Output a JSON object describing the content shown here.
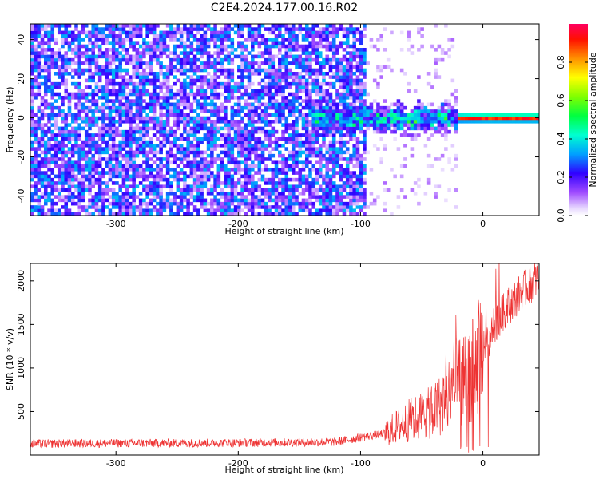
{
  "figure": {
    "title": "C2E4.2024.177.00.16.R02"
  },
  "chart_data": [
    {
      "type": "heatmap",
      "title": "C2E4.2024.177.00.16.R02",
      "xlabel": "Height of straight line (km)",
      "ylabel": "Frequency (Hz)",
      "xlim": [
        -370,
        46
      ],
      "ylim": [
        -50,
        48
      ],
      "x_ticks": [
        -300,
        -200,
        -100,
        0
      ],
      "y_ticks": [
        -40,
        -20,
        0,
        20,
        40
      ],
      "colorbar": {
        "label": "Normalized spectral amplitude",
        "range": [
          0,
          1
        ],
        "ticks": [
          0.0,
          0.2,
          0.4,
          0.6,
          0.8
        ],
        "colormap": [
          "#ffffff",
          "#d6b8ff",
          "#9b3cff",
          "#5a00e0",
          "#0000ff",
          "#00c8ff",
          "#00ff9c",
          "#00ff00",
          "#c8ff00",
          "#ffff00",
          "#ff8000",
          "#ff0000",
          "#ff0066"
        ]
      },
      "features": {
        "noise_region_x": [
          -370,
          -95
        ],
        "noise_amplitude_range": [
          0.05,
          0.35
        ],
        "sparse_region_x": [
          -95,
          -20
        ],
        "signal_center_hz": 0,
        "signal_start_x": -140,
        "signal_peak_amplitude": 1.0
      }
    },
    {
      "type": "line",
      "xlabel": "Height of straight line (km)",
      "ylabel": "SNR (10 * v/v)",
      "xlim": [
        -370,
        46
      ],
      "ylim": [
        0,
        2200
      ],
      "x_ticks": [
        -300,
        -200,
        -100,
        0
      ],
      "y_ticks": [
        500,
        1000,
        1500,
        2000
      ],
      "line_color": "#ee3333",
      "profile": [
        {
          "x": -370,
          "y": 130
        },
        {
          "x": -300,
          "y": 135
        },
        {
          "x": -200,
          "y": 140
        },
        {
          "x": -120,
          "y": 150
        },
        {
          "x": -80,
          "y": 250
        },
        {
          "x": -60,
          "y": 400
        },
        {
          "x": -40,
          "y": 500
        },
        {
          "x": -30,
          "y": 650
        },
        {
          "x": -20,
          "y": 800
        },
        {
          "x": -10,
          "y": 950
        },
        {
          "x": 0,
          "y": 1150
        },
        {
          "x": 10,
          "y": 1500
        },
        {
          "x": 20,
          "y": 1700
        },
        {
          "x": 30,
          "y": 1850
        },
        {
          "x": 46,
          "y": 2050
        }
      ]
    }
  ]
}
